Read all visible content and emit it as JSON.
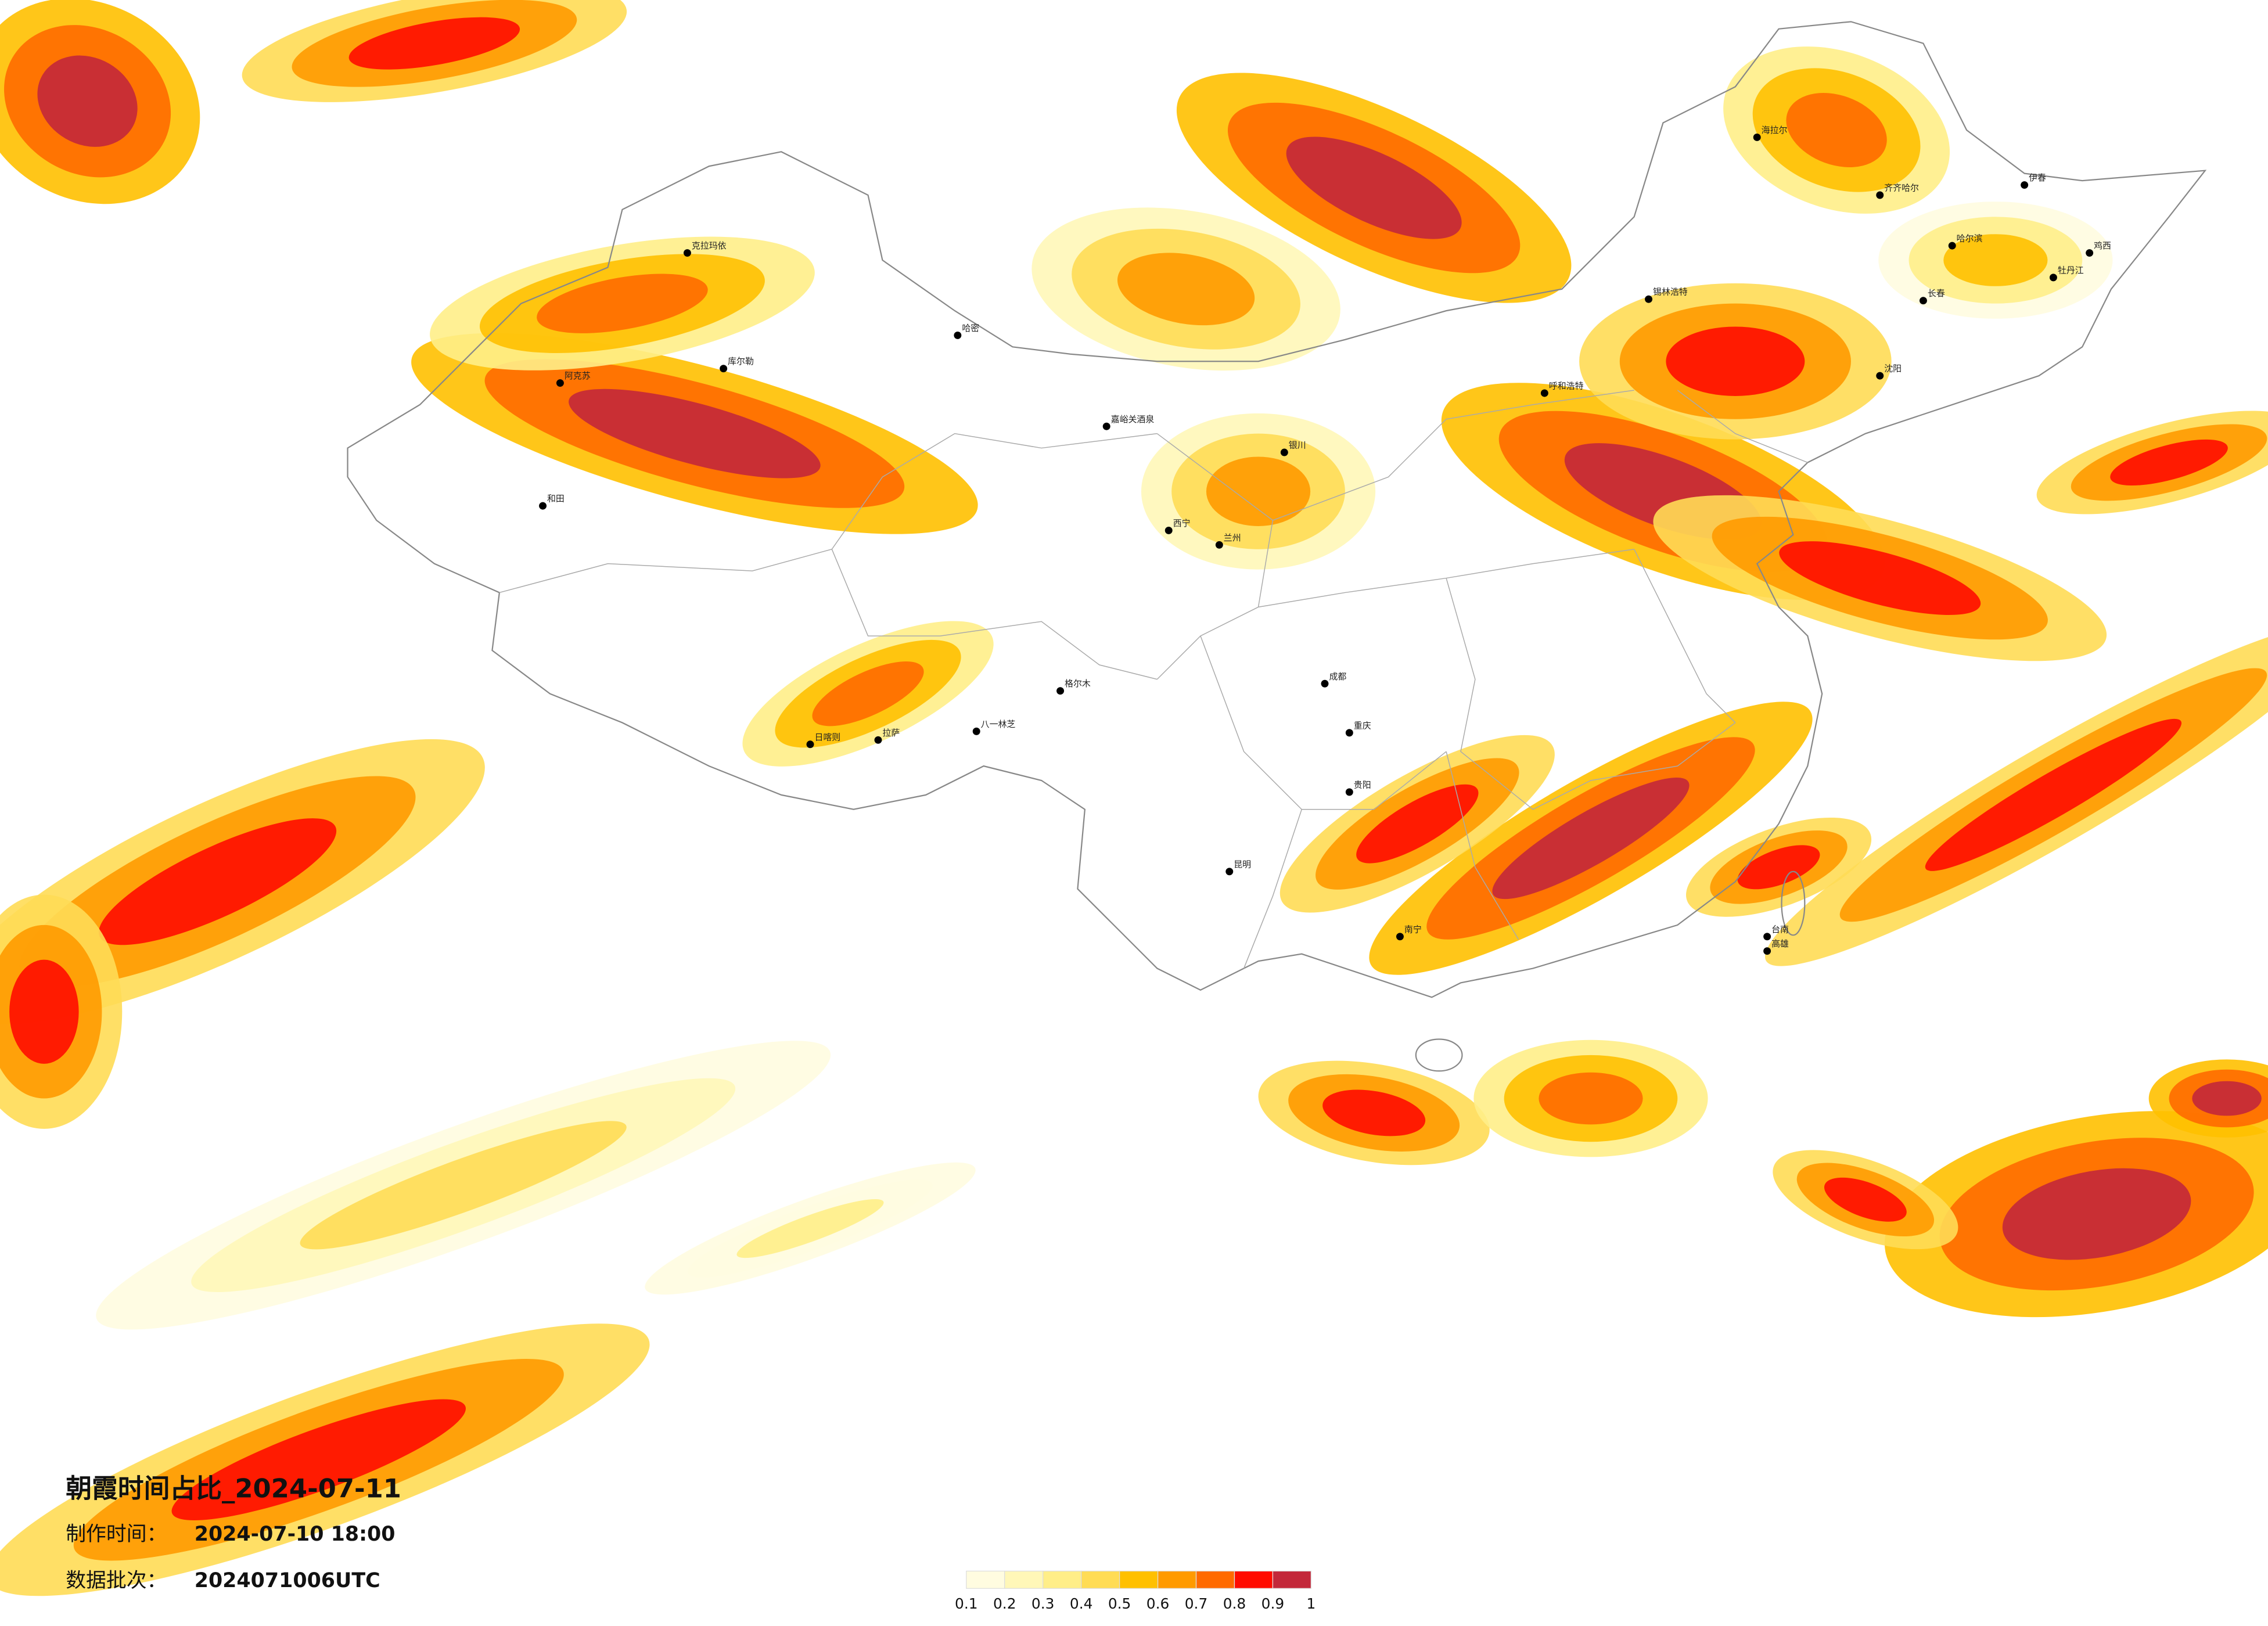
{
  "header": {
    "title": "朝霞时间占比_2024-07-11",
    "made_label": "制作时间：",
    "made_time": "2024-07-10 18:00",
    "batch_label": "数据批次：",
    "batch": "2024071006UTC"
  },
  "legend": {
    "colors": [
      "#fffce0",
      "#fff7b8",
      "#ffee88",
      "#ffdc55",
      "#ffc000",
      "#ff9a00",
      "#ff6a00",
      "#ff0c00",
      "#c3283a"
    ],
    "ticks": [
      0.1,
      0.2,
      0.3,
      0.4,
      0.5,
      0.6,
      0.7,
      0.8,
      0.9,
      1
    ]
  },
  "cities": [
    "克拉玛依",
    "库尔勒",
    "阿克苏",
    "和田",
    "哈密",
    "嘉峪关酒泉",
    "格尔木",
    "西宁",
    "兰州",
    "银川",
    "呼和浩特",
    "日喀则",
    "拉萨",
    "八一林芝",
    "成都",
    "重庆",
    "贵阳",
    "昆明",
    "南宁",
    "海拉尔",
    "齐齐哈尔",
    "哈尔滨",
    "长春",
    "伊春",
    "鸡西",
    "牡丹江",
    "沈阳",
    "锡林浩特",
    "台南",
    "高雄"
  ]
}
